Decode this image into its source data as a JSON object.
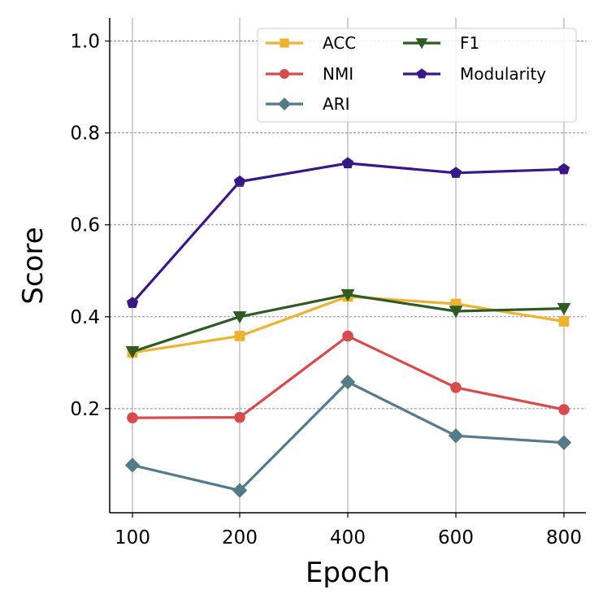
{
  "chart_data": {
    "type": "line",
    "xlabel": "Epoch",
    "ylabel": "Score",
    "categories": [
      "100",
      "200",
      "400",
      "600",
      "800"
    ],
    "ylim": [
      0.0,
      1.05
    ],
    "yticks": [
      "0.2",
      "0.4",
      "0.6",
      "0.8",
      "1.0"
    ],
    "ytick_values": [
      0.2,
      0.4,
      0.6,
      0.8,
      1.0
    ],
    "grid": true,
    "legend_position": "top-right",
    "series": [
      {
        "name": "ACC",
        "color": "#EDB232",
        "marker": "square",
        "values": [
          0.322,
          0.358,
          0.444,
          0.428,
          0.39
        ]
      },
      {
        "name": "NMI",
        "color": "#D64C4C",
        "marker": "circle",
        "values": [
          0.18,
          0.181,
          0.358,
          0.246,
          0.198
        ]
      },
      {
        "name": "ARI",
        "color": "#557A8A",
        "marker": "diamond",
        "values": [
          0.077,
          0.022,
          0.258,
          0.141,
          0.126
        ]
      },
      {
        "name": "F1",
        "color": "#2F5A23",
        "marker": "triangle-down",
        "values": [
          0.324,
          0.4,
          0.448,
          0.412,
          0.418
        ]
      },
      {
        "name": "Modularity",
        "color": "#3A1787",
        "marker": "pentagon",
        "values": [
          0.43,
          0.694,
          0.734,
          0.713,
          0.721
        ]
      }
    ]
  }
}
